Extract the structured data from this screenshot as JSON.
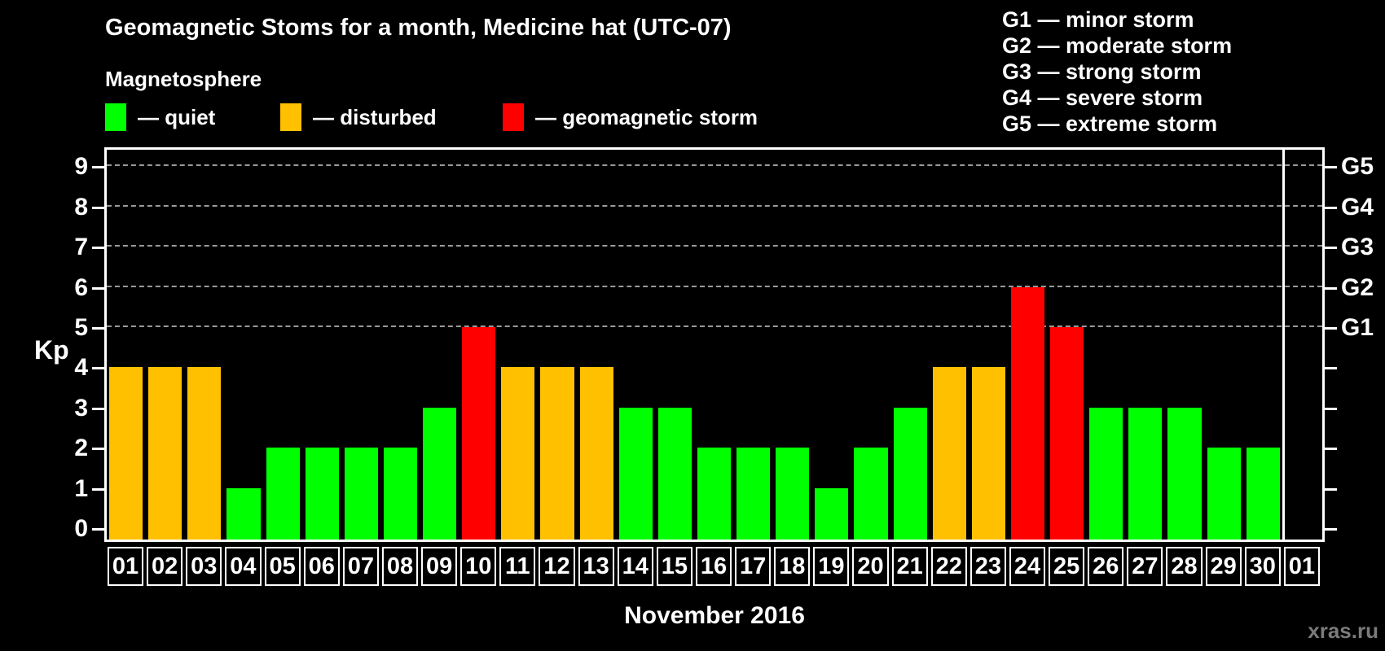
{
  "header": {
    "title": "Geomagnetic Stoms for a month, Medicine hat (UTC-07)",
    "subtitle": "Magnetosphere"
  },
  "legend": {
    "items": [
      {
        "name": "quiet",
        "color": "#00FF00",
        "label": "— quiet"
      },
      {
        "name": "disturbed",
        "color": "#FFC000",
        "label": "— disturbed"
      },
      {
        "name": "storm",
        "color": "#FF0000",
        "label": "— geomagnetic storm"
      }
    ]
  },
  "g_legend": {
    "items": [
      "G1 — minor storm",
      "G2 — moderate storm",
      "G3 — strong storm",
      "G4 — severe storm",
      "G5 — extreme storm"
    ]
  },
  "chart_data": {
    "type": "bar",
    "title": "Geomagnetic Stoms for a month, Medicine hat (UTC-07)",
    "xlabel": "November 2016",
    "ylabel": "Kp",
    "ylim": [
      0,
      9.5
    ],
    "grid": "dashed horizontal lines at storm levels only",
    "grid_levels": [
      5,
      6,
      7,
      8,
      9
    ],
    "yticks": [
      "0",
      "1",
      "2",
      "3",
      "4",
      "5",
      "6",
      "7",
      "8",
      "9"
    ],
    "right_axis_labels": [
      {
        "level": 5,
        "label": "G1"
      },
      {
        "level": 6,
        "label": "G2"
      },
      {
        "level": 7,
        "label": "G3"
      },
      {
        "level": 8,
        "label": "G4"
      },
      {
        "level": 9,
        "label": "G5"
      }
    ],
    "categories": [
      "01",
      "02",
      "03",
      "04",
      "05",
      "06",
      "07",
      "08",
      "09",
      "10",
      "11",
      "12",
      "13",
      "14",
      "15",
      "16",
      "17",
      "18",
      "19",
      "20",
      "21",
      "22",
      "23",
      "24",
      "25",
      "26",
      "27",
      "28",
      "29",
      "30",
      "01"
    ],
    "values": [
      4,
      4,
      4,
      1,
      2,
      2,
      2,
      2,
      3,
      5,
      4,
      4,
      4,
      3,
      3,
      2,
      2,
      2,
      1,
      2,
      3,
      4,
      4,
      6,
      5,
      3,
      3,
      3,
      2,
      2,
      null
    ],
    "statuses": [
      "disturbed",
      "disturbed",
      "disturbed",
      "quiet",
      "quiet",
      "quiet",
      "quiet",
      "quiet",
      "quiet",
      "storm",
      "disturbed",
      "disturbed",
      "disturbed",
      "quiet",
      "quiet",
      "quiet",
      "quiet",
      "quiet",
      "quiet",
      "quiet",
      "quiet",
      "disturbed",
      "disturbed",
      "storm",
      "storm",
      "quiet",
      "quiet",
      "quiet",
      "quiet",
      "quiet",
      null
    ],
    "colors": {
      "quiet": "#00FF00",
      "disturbed": "#FFC000",
      "storm": "#FF0000",
      "gridline": "#9A9A9A",
      "frame": "#FFFFFF"
    }
  },
  "watermark": "xras.ru"
}
